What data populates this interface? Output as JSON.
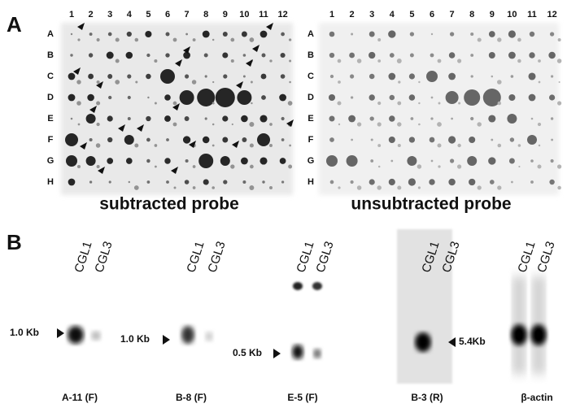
{
  "panel_a": {
    "label": "A",
    "arrays": [
      {
        "columns": [
          "1",
          "2",
          "3",
          "4",
          "5",
          "6",
          "7",
          "8",
          "9",
          "10",
          "11",
          "12"
        ],
        "rows": [
          "A",
          "B",
          "C",
          "D",
          "E",
          "F",
          "G",
          "H"
        ],
        "caption": "subtracted probe"
      },
      {
        "columns": [
          "1",
          "2",
          "3",
          "4",
          "5",
          "6",
          "7",
          "8",
          "9",
          "10",
          "11",
          "12"
        ],
        "rows": [
          "A",
          "B",
          "C",
          "D",
          "E",
          "F",
          "G",
          "H"
        ],
        "caption": "unsubtracted probe"
      }
    ]
  },
  "panel_b": {
    "label": "B",
    "blots": [
      {
        "lanes": [
          "CGL1",
          "CGL3"
        ],
        "marker": "1.0 Kb",
        "caption": "A-11 (F)"
      },
      {
        "lanes": [
          "CGL1",
          "CGL3"
        ],
        "marker": "1.0 Kb",
        "caption": "B-8 (F)"
      },
      {
        "lanes": [
          "CGL1",
          "CGL3"
        ],
        "marker": "0.5 Kb",
        "caption": "E-5 (F)"
      },
      {
        "lanes": [
          "CGL1",
          "CGL3"
        ],
        "marker": "5.4Kb",
        "caption": "B-3 (R)"
      },
      {
        "lanes": [
          "CGL1",
          "CGL3"
        ],
        "caption": "β-actin"
      }
    ]
  }
}
